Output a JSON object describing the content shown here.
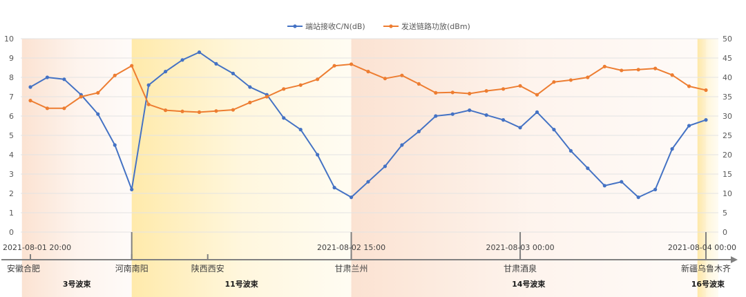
{
  "chart_data": {
    "type": "line",
    "legend_position": "top",
    "grid": true,
    "series": [
      {
        "name": "端站接收C/N(dB)",
        "axis": "left",
        "color": "#4472C4",
        "values": [
          7.5,
          8.0,
          7.9,
          7.1,
          6.1,
          4.5,
          2.2,
          7.6,
          8.3,
          8.9,
          9.3,
          8.7,
          8.2,
          7.5,
          7.1,
          5.9,
          5.3,
          4.0,
          2.3,
          1.8,
          2.6,
          3.4,
          4.5,
          5.2,
          6.0,
          6.1,
          6.3,
          6.05,
          5.8,
          5.4,
          6.2,
          5.3,
          4.2,
          3.3,
          2.4,
          2.6,
          1.8,
          2.2,
          4.3,
          5.5,
          5.8
        ]
      },
      {
        "name": "发送链路功放(dBm)",
        "axis": "right",
        "color": "#ED7D31",
        "values": [
          34,
          32,
          32,
          35,
          36,
          40.5,
          43,
          33,
          31.5,
          31.2,
          31,
          31.3,
          31.6,
          33.5,
          35,
          37,
          38,
          39.5,
          43,
          43.4,
          41.5,
          39.7,
          40.5,
          38.3,
          36,
          36.1,
          35.8,
          36.5,
          37,
          37.8,
          35.5,
          38.8,
          39.3,
          40,
          42.8,
          41.8,
          42,
          42.3,
          40.6,
          37.7,
          36.7
        ]
      }
    ],
    "y_left": {
      "min": 0,
      "max": 10,
      "ticks": [
        "0",
        "1",
        "2",
        "3",
        "4",
        "5",
        "6",
        "7",
        "8",
        "9",
        "10"
      ]
    },
    "y_right": {
      "min": 0,
      "max": 50,
      "ticks": [
        "0",
        "5",
        "10",
        "15",
        "20",
        "25",
        "30",
        "35",
        "40",
        "45",
        "50"
      ]
    },
    "x_axis": {
      "point_count": 41,
      "dates": [
        {
          "index": 6,
          "label": "2021-08-01 20:00",
          "anchor": "start"
        },
        {
          "index": 19,
          "label": "2021-08-02 15:00",
          "anchor": "middle"
        },
        {
          "index": 29,
          "label": "2021-08-03 00:00",
          "anchor": "middle"
        },
        {
          "index": 40,
          "label": "2021-08-04 00:00",
          "anchor": "end"
        }
      ],
      "locations": [
        {
          "index": 0,
          "label": "安徽合肥"
        },
        {
          "index": 6,
          "label": "河南南阳"
        },
        {
          "index": 10.5,
          "label": "陕西西安"
        },
        {
          "index": 19,
          "label": "甘肃兰州"
        },
        {
          "index": 29,
          "label": "甘肃酒泉"
        },
        {
          "index": 40,
          "label": "新疆乌鲁木齐"
        }
      ]
    },
    "beams": [
      {
        "label": "3号波束",
        "start": -0.5,
        "end": 6,
        "color": "#F8CBAD"
      },
      {
        "label": "11号波束",
        "start": 6,
        "end": 19,
        "color": "#FFD966"
      },
      {
        "label": "14号波束",
        "start": 19,
        "end": 40,
        "color": "#F8CBAD"
      },
      {
        "label": "16号波束",
        "start": 40,
        "end": 40.5,
        "color": "#FFD966"
      }
    ]
  }
}
